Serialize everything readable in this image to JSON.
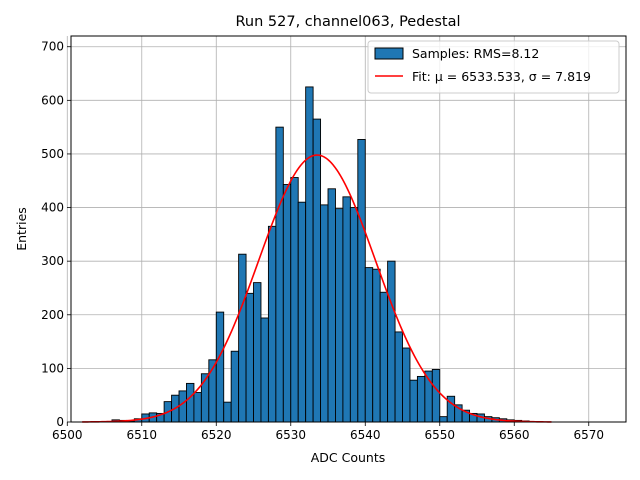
{
  "chart_data": {
    "type": "bar",
    "title": "Run 527, channel063, Pedestal",
    "xlabel": "ADC Counts",
    "ylabel": "Entries",
    "xlim": [
      6500.5,
      6575
    ],
    "ylim": [
      0,
      720
    ],
    "xticks": [
      6500,
      6510,
      6520,
      6530,
      6540,
      6550,
      6560,
      6570
    ],
    "yticks": [
      0,
      100,
      200,
      300,
      400,
      500,
      600,
      700
    ],
    "grid": true,
    "legend_position": "top-right",
    "bin_width": 1,
    "histogram": {
      "name": "Samples: RMS=8.12",
      "color": "#1f77b4",
      "bin_starts": [
        6506,
        6507,
        6508,
        6509,
        6510,
        6511,
        6512,
        6513,
        6514,
        6515,
        6516,
        6517,
        6518,
        6519,
        6520,
        6521,
        6522,
        6523,
        6524,
        6525,
        6526,
        6527,
        6528,
        6529,
        6530,
        6531,
        6532,
        6533,
        6534,
        6535,
        6536,
        6537,
        6538,
        6539,
        6540,
        6541,
        6542,
        6543,
        6544,
        6545,
        6546,
        6547,
        6548,
        6549,
        6550,
        6551,
        6552,
        6553,
        6554,
        6555,
        6556,
        6557,
        6558,
        6559,
        6560,
        6561
      ],
      "values": [
        4,
        3,
        2,
        6,
        15,
        17,
        16,
        38,
        50,
        58,
        72,
        55,
        90,
        116,
        205,
        37,
        132,
        313,
        240,
        260,
        194,
        365,
        550,
        443,
        456,
        410,
        625,
        565,
        405,
        435,
        398,
        420,
        400,
        527,
        288,
        285,
        242,
        300,
        168,
        138,
        78,
        85,
        95,
        98,
        10,
        48,
        32,
        22,
        16,
        15,
        10,
        8,
        6,
        4,
        3,
        2
      ]
    },
    "fit": {
      "name": "Fit: μ = 6533.533, σ = 7.819",
      "color": "#ff0000",
      "mu": 6533.533,
      "sigma": 7.819,
      "amplitude": 498,
      "x_range": [
        6502,
        6565
      ]
    }
  }
}
